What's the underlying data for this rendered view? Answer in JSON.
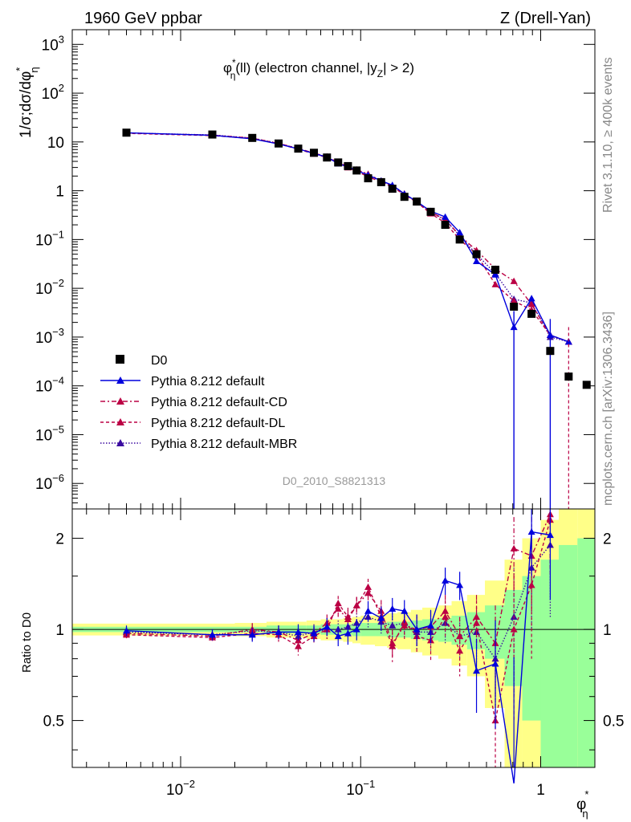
{
  "header": {
    "left": "1960 GeV ppbar",
    "right": "Z (Drell-Yan)"
  },
  "side_labels": {
    "top": "Rivet 3.1.10, ≥ 400k events",
    "bottom": "mcplots.cern.ch [arXiv:1306.3436]"
  },
  "chart_data": [
    {
      "type": "scatter",
      "title": "φ*η(ll) (electron channel, |yZ| > 2)",
      "title_parts": {
        "phi": "φ",
        "sup": "*",
        "sub": "η",
        "rest": "(ll) (electron channel, |y",
        "sub2": "Z",
        "end": "| > 2)"
      },
      "watermark": "D0_2010_S8821313",
      "ylabel": "1/σ;dσ/dφ*η",
      "ylabel_parts": {
        "main": "1/σ;dσ/dφ",
        "sup": "*",
        "sub": "η"
      },
      "xlabel_parts": {
        "main": "φ",
        "sup": "*",
        "sub": "η"
      },
      "x_scale": "log",
      "y_scale": "log",
      "xlim": [
        0.0025,
        2.0
      ],
      "ylim": [
        3e-07,
        2000
      ],
      "y_ticks": [
        {
          "value": 1000,
          "base": "10",
          "exp": "3"
        },
        {
          "value": 100,
          "base": "10",
          "exp": "2"
        },
        {
          "value": 10,
          "base": "10",
          "exp": ""
        },
        {
          "value": 1,
          "base": "1",
          "exp": ""
        },
        {
          "value": 0.1,
          "base": "10",
          "exp": "−1"
        },
        {
          "value": 0.01,
          "base": "10",
          "exp": "−2"
        },
        {
          "value": 0.001,
          "base": "10",
          "exp": "−3"
        },
        {
          "value": 0.0001,
          "base": "10",
          "exp": "−4"
        },
        {
          "value": 1e-05,
          "base": "10",
          "exp": "−5"
        },
        {
          "value": 1e-06,
          "base": "10",
          "exp": "−6"
        }
      ],
      "x": [
        0.005,
        0.015,
        0.025,
        0.035,
        0.045,
        0.055,
        0.065,
        0.075,
        0.085,
        0.095,
        0.11,
        0.13,
        0.15,
        0.175,
        0.205,
        0.245,
        0.295,
        0.355,
        0.44,
        0.56,
        0.71,
        0.89,
        1.13,
        1.43,
        1.8
      ],
      "data": {
        "name": "D0",
        "values": [
          15.5,
          14.2,
          12.1,
          9.3,
          7.3,
          6.0,
          4.8,
          3.8,
          3.2,
          2.6,
          1.8,
          1.5,
          1.1,
          0.75,
          0.6,
          0.37,
          0.2,
          0.1,
          0.05,
          0.024,
          0.0042,
          0.003,
          0.00052,
          0.000155,
          0.000105
        ]
      },
      "series": [
        {
          "name": "Pythia 8.212 default",
          "color": "#0000dd",
          "dash": "",
          "values": [
            15.4,
            13.7,
            11.6,
            9.1,
            7.2,
            5.8,
            4.9,
            3.6,
            3.1,
            2.6,
            2.1,
            1.6,
            1.3,
            0.86,
            0.6,
            0.38,
            0.29,
            0.14,
            0.036,
            0.019,
            0.0016,
            0.0062,
            0.0011,
            0.0008
          ],
          "ratio": [
            0.99,
            0.96,
            0.96,
            0.98,
            0.98,
            0.97,
            1.02,
            0.95,
            0.97,
            1.0,
            1.15,
            1.09,
            1.17,
            1.15,
            1.0,
            1.03,
            1.45,
            1.4,
            0.73,
            0.77,
            0.31,
            2.1,
            2.05,
            null
          ],
          "ratio_err": [
            0.04,
            0.04,
            0.05,
            0.05,
            0.06,
            0.06,
            0.07,
            0.07,
            0.08,
            0.08,
            0.09,
            0.1,
            0.1,
            0.1,
            0.12,
            0.13,
            0.15,
            0.15,
            0.2,
            0.3,
            0.5,
            0.6,
            0.8,
            null
          ]
        },
        {
          "name": "Pythia 8.212 default-CD",
          "color": "#bb0044",
          "dash": "6,3,2,3",
          "values": [
            15.2,
            13.8,
            12.0,
            9.3,
            7.4,
            5.9,
            5.0,
            3.8,
            3.2,
            2.7,
            2.2,
            1.6,
            1.25,
            0.87,
            0.58,
            0.36,
            0.26,
            0.12,
            0.06,
            0.025,
            0.014,
            0.0047,
            0.0011,
            0.0008
          ],
          "ratio": [
            0.97,
            0.95,
            1.0,
            0.98,
            0.92,
            0.97,
            1.05,
            1.17,
            1.08,
            1.2,
            1.32,
            1.15,
            0.9,
            1.03,
            1.0,
            1.02,
            1.15,
            0.95,
            1.1,
            0.9,
            1.85,
            1.75,
            2.4,
            null
          ],
          "ratio_err": [
            0.04,
            0.04,
            0.05,
            0.05,
            0.06,
            0.06,
            0.07,
            0.07,
            0.08,
            0.08,
            0.09,
            0.1,
            0.1,
            0.1,
            0.12,
            0.13,
            0.15,
            0.15,
            0.2,
            0.3,
            0.5,
            0.6,
            0.8,
            null
          ]
        },
        {
          "name": "Pythia 8.212 default-DL",
          "color": "#bb0044",
          "dash": "4,3",
          "values": [
            15.0,
            13.5,
            11.8,
            9.2,
            7.1,
            5.7,
            4.8,
            3.7,
            3.0,
            2.5,
            1.95,
            1.5,
            1.2,
            0.83,
            0.58,
            0.34,
            0.22,
            0.1,
            0.05,
            0.012,
            0.0055,
            0.0036,
            0.0011,
            0.0008
          ],
          "ratio": [
            0.96,
            0.94,
            0.97,
            0.96,
            0.88,
            0.95,
            1.0,
            1.22,
            1.1,
            1.2,
            1.38,
            1.1,
            0.88,
            1.06,
            0.95,
            0.92,
            1.1,
            0.85,
            1.05,
            0.5,
            1.0,
            1.4,
            2.3,
            null
          ],
          "ratio_err": [
            0.04,
            0.04,
            0.05,
            0.05,
            0.06,
            0.06,
            0.07,
            0.07,
            0.08,
            0.08,
            0.09,
            0.1,
            0.1,
            0.1,
            0.12,
            0.13,
            0.15,
            0.15,
            0.2,
            0.3,
            0.5,
            0.6,
            0.8,
            null
          ]
        },
        {
          "name": "Pythia 8.212 default-MBR",
          "color": "#3a0aa0",
          "dash": "1.5,2",
          "values": [
            15.3,
            13.9,
            12.0,
            9.4,
            7.3,
            5.8,
            4.9,
            3.7,
            3.1,
            2.6,
            2.0,
            1.6,
            1.25,
            0.85,
            0.6,
            0.36,
            0.25,
            0.12,
            0.05,
            0.02,
            0.006,
            0.005,
            0.001,
            0.0008
          ],
          "ratio": [
            0.98,
            0.96,
            0.99,
            0.98,
            0.95,
            0.98,
            1.0,
            1.0,
            1.02,
            1.05,
            1.1,
            1.06,
            1.03,
            1.05,
            0.98,
            0.98,
            1.05,
            0.95,
            0.98,
            0.8,
            1.1,
            1.6,
            1.9,
            null
          ],
          "ratio_err": [
            0.04,
            0.04,
            0.05,
            0.05,
            0.06,
            0.06,
            0.07,
            0.07,
            0.08,
            0.08,
            0.09,
            0.1,
            0.1,
            0.1,
            0.12,
            0.13,
            0.15,
            0.15,
            0.2,
            0.3,
            0.5,
            0.6,
            0.8,
            null
          ]
        }
      ],
      "legend_entries": [
        "D0",
        "Pythia 8.212 default",
        "Pythia 8.212 default-CD",
        "Pythia 8.212 default-DL",
        "Pythia 8.212 default-MBR"
      ],
      "legend_position": "bottom-left"
    },
    {
      "type": "scatter",
      "ylabel": "Ratio to D0",
      "y_scale": "log",
      "ylim": [
        0.35,
        2.5
      ],
      "y_ticks": [
        {
          "value": 0.5,
          "label": "0.5"
        },
        {
          "value": 1,
          "label": "1"
        },
        {
          "value": 2,
          "label": "2"
        }
      ],
      "x_ticks": [
        {
          "value": 0.01,
          "base": "10",
          "exp": "−2"
        },
        {
          "value": 0.1,
          "base": "10",
          "exp": "−1"
        },
        {
          "value": 1,
          "base": "1",
          "exp": ""
        }
      ],
      "band_colors": {
        "inner": "#99ff99",
        "outer": "#ffff88"
      },
      "band_edges": [
        0.0025,
        0.005,
        0.01,
        0.02,
        0.03,
        0.04,
        0.05,
        0.06,
        0.07,
        0.08,
        0.09,
        0.1,
        0.12,
        0.14,
        0.16,
        0.19,
        0.22,
        0.27,
        0.32,
        0.39,
        0.49,
        0.63,
        0.79,
        1.0,
        1.26,
        1.6,
        2.0
      ],
      "band_inner": [
        0.02,
        0.02,
        0.02,
        0.02,
        0.03,
        0.03,
        0.03,
        0.04,
        0.04,
        0.04,
        0.05,
        0.05,
        0.05,
        0.06,
        0.06,
        0.07,
        0.08,
        0.09,
        0.11,
        0.14,
        0.2,
        0.35,
        0.5,
        0.7,
        0.9,
        1.0
      ],
      "band_outer": [
        0.045,
        0.045,
        0.045,
        0.05,
        0.06,
        0.06,
        0.07,
        0.08,
        0.08,
        0.09,
        0.1,
        0.11,
        0.12,
        0.13,
        0.14,
        0.16,
        0.18,
        0.2,
        0.24,
        0.3,
        0.45,
        0.7,
        1.0,
        1.3,
        1.5,
        1.6
      ]
    }
  ]
}
